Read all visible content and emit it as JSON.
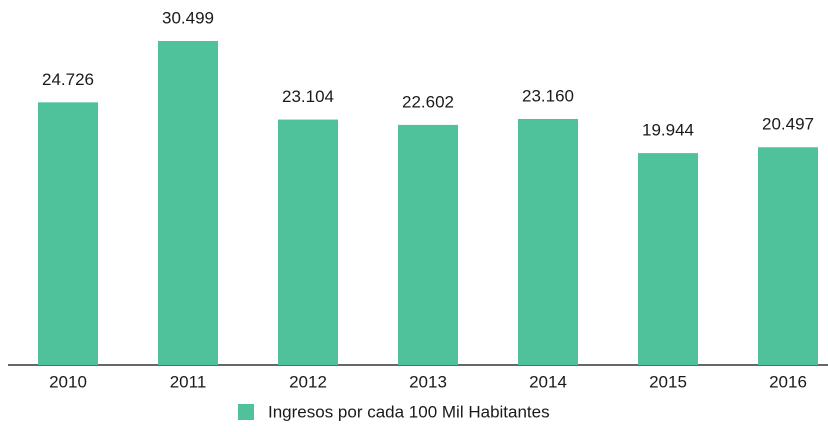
{
  "chart_data": {
    "type": "bar",
    "categories": [
      "2010",
      "2011",
      "2012",
      "2013",
      "2014",
      "2015",
      "2016"
    ],
    "series": [
      {
        "name": "Ingresos por cada 100 Mil Habitantes",
        "color": "#4fc19b",
        "values": [
          24726,
          30499,
          23104,
          22602,
          23160,
          19944,
          20497
        ],
        "value_labels": [
          "24.726",
          "30.499",
          "23.104",
          "22.602",
          "23.160",
          "19.944",
          "20.497"
        ]
      }
    ]
  }
}
